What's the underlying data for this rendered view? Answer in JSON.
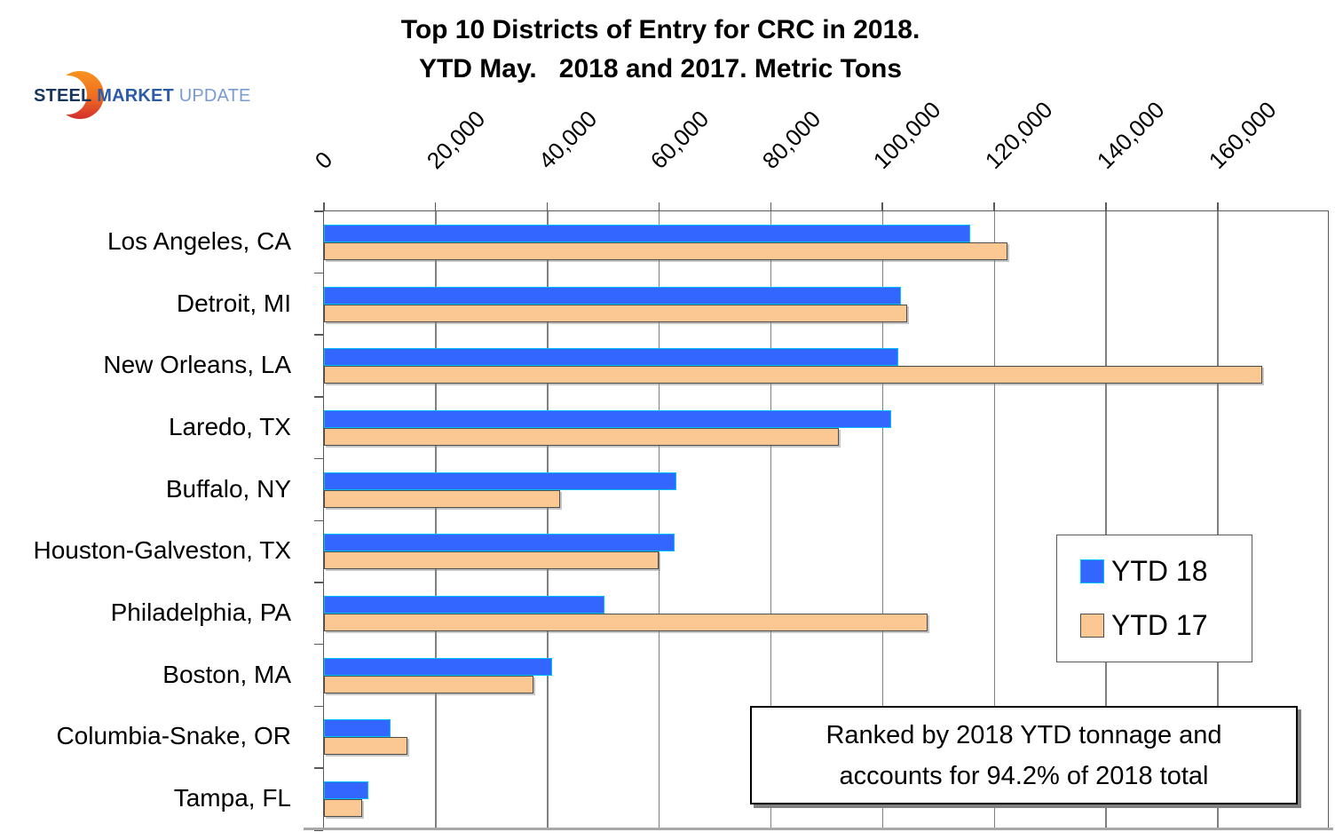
{
  "logo": {
    "steel": "STEEL",
    "market": "MARKET",
    "update": "UPDATE"
  },
  "title": {
    "line1": "Top 10 Districts of Entry for CRC in 2018.",
    "line2": "YTD May.   2018 and 2017. Metric Tons"
  },
  "legend": {
    "items": [
      {
        "label": "YTD 18"
      },
      {
        "label": "YTD 17"
      }
    ]
  },
  "annotation": {
    "line1": "Ranked by 2018 YTD tonnage and",
    "line2": "accounts for 94.2% of 2018 total"
  },
  "chart_data": {
    "type": "bar",
    "orientation": "horizontal",
    "title": "Top 10 Districts of Entry for CRC in 2018. YTD May. 2018 and 2017. Metric Tons",
    "categories": [
      "Los Angeles, CA",
      "Detroit, MI",
      "New Orleans, LA",
      "Laredo, TX",
      "Buffalo, NY",
      "Houston-Galveston, TX",
      "Philadelphia, PA",
      "Boston, MA",
      "Columbia-Snake, OR",
      "Tampa, FL"
    ],
    "series": [
      {
        "name": "YTD 18",
        "color": "#3366FF",
        "border_color": "#00C0FF",
        "values": [
          115700,
          103200,
          102800,
          101500,
          63000,
          62700,
          50200,
          40800,
          11900,
          7900
        ]
      },
      {
        "name": "YTD 17",
        "color": "#FBC894",
        "border_color": "#4D4D4D",
        "values": [
          122300,
          104400,
          167900,
          92100,
          42300,
          59900,
          108100,
          37500,
          15000,
          6800
        ]
      }
    ],
    "x_ticks": [
      "0",
      "20,000",
      "40,000",
      "60,000",
      "80,000",
      "100,000",
      "120,000",
      "140,000",
      "160,000"
    ],
    "xlim": [
      0,
      180000
    ],
    "grid": "vertical major gridlines, gray",
    "legend_position": "inside right",
    "units": "Metric Tons"
  }
}
